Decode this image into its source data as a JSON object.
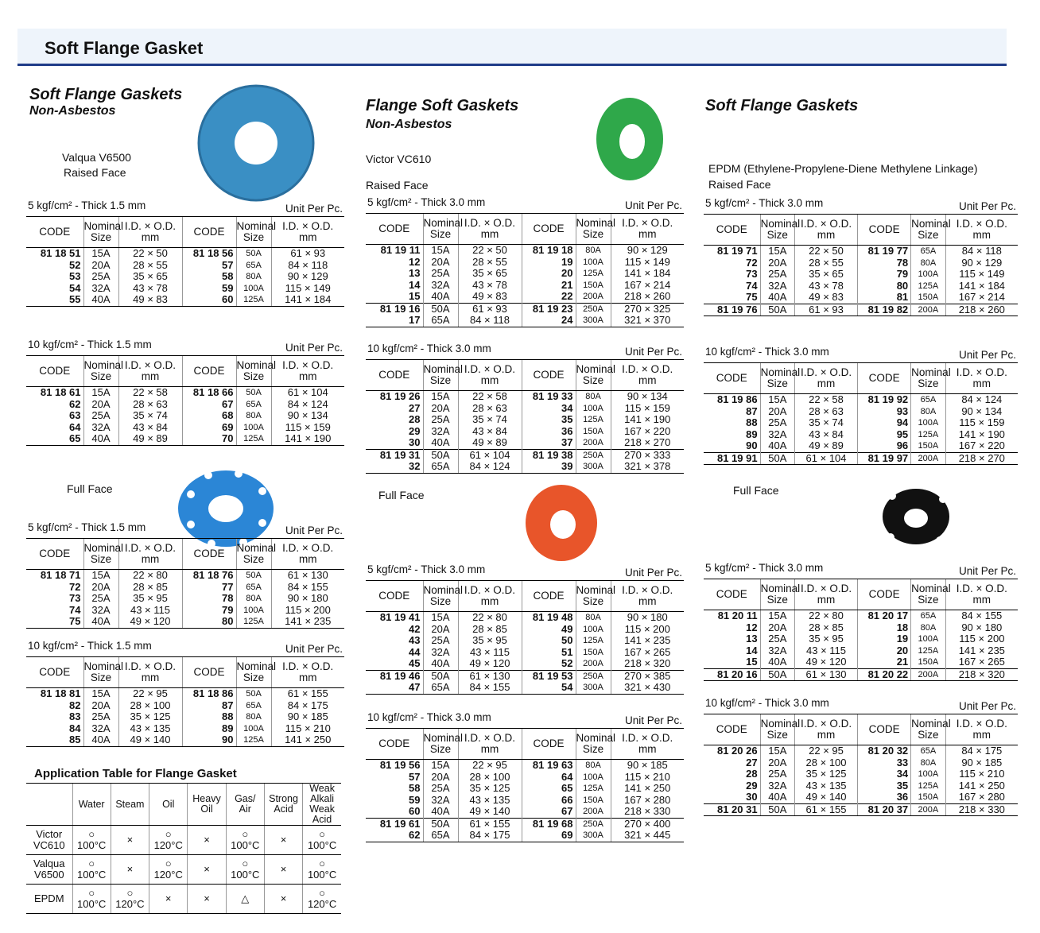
{
  "header": {
    "title": "Soft Flange Gasket"
  },
  "table_headers": [
    "CODE",
    "Nominal\nSize",
    "I.D. × O.D.\nmm"
  ],
  "unit_label": "Unit Per Pc.",
  "columns": [
    {
      "title": "Soft Flange Gaskets",
      "subtitle": "Non-Asbestos",
      "product": "Valqua V6500",
      "sections": [
        {
          "label": "Raised Face",
          "tables": [
            {
              "caption": "5 kgf/cm² - Thick 1.5 mm",
              "groups": [
                [
                  [
                    "81 18 51",
                    "15A",
                    "22 × 50",
                    "81 18 56",
                    "50A",
                    "61 × 93"
                  ],
                  [
                    "52",
                    "20A",
                    "28 × 55",
                    "57",
                    "65A",
                    "84 × 118"
                  ],
                  [
                    "53",
                    "25A",
                    "35 × 65",
                    "58",
                    "80A",
                    "90 × 129"
                  ],
                  [
                    "54",
                    "32A",
                    "43 × 78",
                    "59",
                    "100A",
                    "115 × 149"
                  ],
                  [
                    "55",
                    "40A",
                    "49 × 83",
                    "60",
                    "125A",
                    "141 × 184"
                  ]
                ]
              ]
            },
            {
              "caption": "10 kgf/cm² - Thick 1.5 mm",
              "groups": [
                [
                  [
                    "81 18 61",
                    "15A",
                    "22 × 58",
                    "81 18 66",
                    "50A",
                    "61 × 104"
                  ],
                  [
                    "62",
                    "20A",
                    "28 × 63",
                    "67",
                    "65A",
                    "84 × 124"
                  ],
                  [
                    "63",
                    "25A",
                    "35 × 74",
                    "68",
                    "80A",
                    "90 × 134"
                  ],
                  [
                    "64",
                    "32A",
                    "43 × 84",
                    "69",
                    "100A",
                    "115 × 159"
                  ],
                  [
                    "65",
                    "40A",
                    "49 × 89",
                    "70",
                    "125A",
                    "141 × 190"
                  ]
                ]
              ]
            }
          ]
        },
        {
          "label": "Full Face",
          "tables": [
            {
              "caption": "5 kgf/cm² - Thick 1.5 mm",
              "groups": [
                [
                  [
                    "81 18 71",
                    "15A",
                    "22 × 80",
                    "81 18 76",
                    "50A",
                    "61 × 130"
                  ],
                  [
                    "72",
                    "20A",
                    "28 × 85",
                    "77",
                    "65A",
                    "84 × 155"
                  ],
                  [
                    "73",
                    "25A",
                    "35 × 95",
                    "78",
                    "80A",
                    "90 × 180"
                  ],
                  [
                    "74",
                    "32A",
                    "43 × 115",
                    "79",
                    "100A",
                    "115 × 200"
                  ],
                  [
                    "75",
                    "40A",
                    "49 × 120",
                    "80",
                    "125A",
                    "141 × 235"
                  ]
                ]
              ]
            },
            {
              "caption": "10 kgf/cm² - Thick 1.5 mm",
              "groups": [
                [
                  [
                    "81 18 81",
                    "15A",
                    "22 × 95",
                    "81 18 86",
                    "50A",
                    "61 × 155"
                  ],
                  [
                    "82",
                    "20A",
                    "28 × 100",
                    "87",
                    "65A",
                    "84 × 175"
                  ],
                  [
                    "83",
                    "25A",
                    "35 × 125",
                    "88",
                    "80A",
                    "90 × 185"
                  ],
                  [
                    "84",
                    "32A",
                    "43 × 135",
                    "89",
                    "100A",
                    "115 × 210"
                  ],
                  [
                    "85",
                    "40A",
                    "49 × 140",
                    "90",
                    "125A",
                    "141 × 250"
                  ]
                ]
              ]
            }
          ]
        }
      ]
    },
    {
      "title": "Flange Soft Gaskets",
      "subtitle": "Non-Asbestos",
      "product": "Victor VC610",
      "sections": [
        {
          "label": "Raised Face",
          "tables": [
            {
              "caption": "5 kgf/cm² - Thick 3.0 mm",
              "groups": [
                [
                  [
                    "81 19 11",
                    "15A",
                    "22 × 50",
                    "81 19 18",
                    "80A",
                    "90 × 129"
                  ],
                  [
                    "12",
                    "20A",
                    "28 × 55",
                    "19",
                    "100A",
                    "115 × 149"
                  ],
                  [
                    "13",
                    "25A",
                    "35 × 65",
                    "20",
                    "125A",
                    "141 × 184"
                  ],
                  [
                    "14",
                    "32A",
                    "43 × 78",
                    "21",
                    "150A",
                    "167 × 214"
                  ],
                  [
                    "15",
                    "40A",
                    "49 × 83",
                    "22",
                    "200A",
                    "218 × 260"
                  ]
                ],
                [
                  [
                    "81 19 16",
                    "50A",
                    "61 × 93",
                    "81 19 23",
                    "250A",
                    "270 × 325"
                  ],
                  [
                    "17",
                    "65A",
                    "84 × 118",
                    "24",
                    "300A",
                    "321 × 370"
                  ]
                ]
              ]
            },
            {
              "caption": "10 kgf/cm² - Thick 3.0 mm",
              "groups": [
                [
                  [
                    "81 19 26",
                    "15A",
                    "22 × 58",
                    "81 19 33",
                    "80A",
                    "90 × 134"
                  ],
                  [
                    "27",
                    "20A",
                    "28 × 63",
                    "34",
                    "100A",
                    "115 × 159"
                  ],
                  [
                    "28",
                    "25A",
                    "35 × 74",
                    "35",
                    "125A",
                    "141 × 190"
                  ],
                  [
                    "29",
                    "32A",
                    "43 × 84",
                    "36",
                    "150A",
                    "167 × 220"
                  ],
                  [
                    "30",
                    "40A",
                    "49 × 89",
                    "37",
                    "200A",
                    "218 × 270"
                  ]
                ],
                [
                  [
                    "81 19 31",
                    "50A",
                    "61 × 104",
                    "81 19 38",
                    "250A",
                    "270 × 333"
                  ],
                  [
                    "32",
                    "65A",
                    "84 × 124",
                    "39",
                    "300A",
                    "321 × 378"
                  ]
                ]
              ]
            }
          ]
        },
        {
          "label": "Full Face",
          "tables": [
            {
              "caption": "5 kgf/cm² - Thick 3.0 mm",
              "groups": [
                [
                  [
                    "81 19 41",
                    "15A",
                    "22 × 80",
                    "81 19 48",
                    "80A",
                    "90 × 180"
                  ],
                  [
                    "42",
                    "20A",
                    "28 × 85",
                    "49",
                    "100A",
                    "115 × 200"
                  ],
                  [
                    "43",
                    "25A",
                    "35 × 95",
                    "50",
                    "125A",
                    "141 × 235"
                  ],
                  [
                    "44",
                    "32A",
                    "43 × 115",
                    "51",
                    "150A",
                    "167 × 265"
                  ],
                  [
                    "45",
                    "40A",
                    "49 × 120",
                    "52",
                    "200A",
                    "218 × 320"
                  ]
                ],
                [
                  [
                    "81 19 46",
                    "50A",
                    "61 × 130",
                    "81 19 53",
                    "250A",
                    "270 × 385"
                  ],
                  [
                    "47",
                    "65A",
                    "84 × 155",
                    "54",
                    "300A",
                    "321 × 430"
                  ]
                ]
              ]
            },
            {
              "caption": "10 kgf/cm² - Thick 3.0 mm",
              "groups": [
                [
                  [
                    "81 19 56",
                    "15A",
                    "22 × 95",
                    "81 19 63",
                    "80A",
                    "90 × 185"
                  ],
                  [
                    "57",
                    "20A",
                    "28 × 100",
                    "64",
                    "100A",
                    "115 × 210"
                  ],
                  [
                    "58",
                    "25A",
                    "35 × 125",
                    "65",
                    "125A",
                    "141 × 250"
                  ],
                  [
                    "59",
                    "32A",
                    "43 × 135",
                    "66",
                    "150A",
                    "167 × 280"
                  ],
                  [
                    "60",
                    "40A",
                    "49 × 140",
                    "67",
                    "200A",
                    "218 × 330"
                  ]
                ],
                [
                  [
                    "81 19 61",
                    "50A",
                    "61 × 155",
                    "81 19 68",
                    "250A",
                    "270 × 400"
                  ],
                  [
                    "62",
                    "65A",
                    "84 × 175",
                    "69",
                    "300A",
                    "321 × 445"
                  ]
                ]
              ]
            }
          ]
        }
      ]
    },
    {
      "title": "Soft Flange Gaskets",
      "product": "EPDM (Ethylene-Propylene-Diene Methylene Linkage)",
      "sections": [
        {
          "label": "Raised Face",
          "tables": [
            {
              "caption": "5 kgf/cm² - Thick 3.0 mm",
              "groups": [
                [
                  [
                    "81 19 71",
                    "15A",
                    "22 × 50",
                    "81 19 77",
                    "65A",
                    "84 × 118"
                  ],
                  [
                    "72",
                    "20A",
                    "28 × 55",
                    "78",
                    "80A",
                    "90 × 129"
                  ],
                  [
                    "73",
                    "25A",
                    "35 × 65",
                    "79",
                    "100A",
                    "115 × 149"
                  ],
                  [
                    "74",
                    "32A",
                    "43 × 78",
                    "80",
                    "125A",
                    "141 × 184"
                  ],
                  [
                    "75",
                    "40A",
                    "49 × 83",
                    "81",
                    "150A",
                    "167 × 214"
                  ]
                ],
                [
                  [
                    "81 19 76",
                    "50A",
                    "61 × 93",
                    "81 19 82",
                    "200A",
                    "218 × 260"
                  ]
                ]
              ]
            },
            {
              "caption": "10 kgf/cm² - Thick 3.0 mm",
              "groups": [
                [
                  [
                    "81 19 86",
                    "15A",
                    "22 × 58",
                    "81 19 92",
                    "65A",
                    "84 × 124"
                  ],
                  [
                    "87",
                    "20A",
                    "28 × 63",
                    "93",
                    "80A",
                    "90 × 134"
                  ],
                  [
                    "88",
                    "25A",
                    "35 × 74",
                    "94",
                    "100A",
                    "115 × 159"
                  ],
                  [
                    "89",
                    "32A",
                    "43 × 84",
                    "95",
                    "125A",
                    "141 × 190"
                  ],
                  [
                    "90",
                    "40A",
                    "49 × 89",
                    "96",
                    "150A",
                    "167 × 220"
                  ]
                ],
                [
                  [
                    "81 19 91",
                    "50A",
                    "61 × 104",
                    "81 19 97",
                    "200A",
                    "218 × 270"
                  ]
                ]
              ]
            }
          ]
        },
        {
          "label": "Full Face",
          "tables": [
            {
              "caption": "5 kgf/cm² - Thick 3.0 mm",
              "groups": [
                [
                  [
                    "81 20 11",
                    "15A",
                    "22 × 80",
                    "81 20 17",
                    "65A",
                    "84 × 155"
                  ],
                  [
                    "12",
                    "20A",
                    "28 × 85",
                    "18",
                    "80A",
                    "90 × 180"
                  ],
                  [
                    "13",
                    "25A",
                    "35 × 95",
                    "19",
                    "100A",
                    "115 × 200"
                  ],
                  [
                    "14",
                    "32A",
                    "43 × 115",
                    "20",
                    "125A",
                    "141 × 235"
                  ],
                  [
                    "15",
                    "40A",
                    "49 × 120",
                    "21",
                    "150A",
                    "167 × 265"
                  ]
                ],
                [
                  [
                    "81 20 16",
                    "50A",
                    "61 × 130",
                    "81 20 22",
                    "200A",
                    "218 × 320"
                  ]
                ]
              ]
            },
            {
              "caption": "10 kgf/cm² - Thick 3.0 mm",
              "groups": [
                [
                  [
                    "81 20 26",
                    "15A",
                    "22 × 95",
                    "81 20 32",
                    "65A",
                    "84 × 175"
                  ],
                  [
                    "27",
                    "20A",
                    "28 × 100",
                    "33",
                    "80A",
                    "90 × 185"
                  ],
                  [
                    "28",
                    "25A",
                    "35 × 125",
                    "34",
                    "100A",
                    "115 × 210"
                  ],
                  [
                    "29",
                    "32A",
                    "43 × 135",
                    "35",
                    "125A",
                    "141 × 250"
                  ],
                  [
                    "30",
                    "40A",
                    "49 × 140",
                    "36",
                    "150A",
                    "167 × 280"
                  ]
                ],
                [
                  [
                    "81 20 31",
                    "50A",
                    "61 × 155",
                    "81 20 37",
                    "200A",
                    "218 × 330"
                  ]
                ]
              ]
            }
          ]
        }
      ]
    }
  ],
  "application_table": {
    "title": "Application Table for Flange Gasket",
    "headers": [
      "Water",
      "Steam",
      "Oil",
      "Heavy\nOil",
      "Gas/\nAir",
      "Strong\nAcid",
      "Weak Alkali\nWeak Acid"
    ],
    "rows": [
      {
        "name": "Victor\nVC610",
        "cells": [
          "○\n100°C",
          "×",
          "○\n120°C",
          "×",
          "○\n100°C",
          "×",
          "○\n100°C"
        ]
      },
      {
        "name": "Valqua\nV6500",
        "cells": [
          "○\n100°C",
          "×",
          "○\n120°C",
          "×",
          "○\n100°C",
          "×",
          "○\n100°C"
        ]
      },
      {
        "name": "EPDM",
        "cells": [
          "○\n100°C",
          "○\n120°C",
          "×",
          "×",
          "△",
          "×",
          "○\n120°C"
        ]
      }
    ]
  }
}
